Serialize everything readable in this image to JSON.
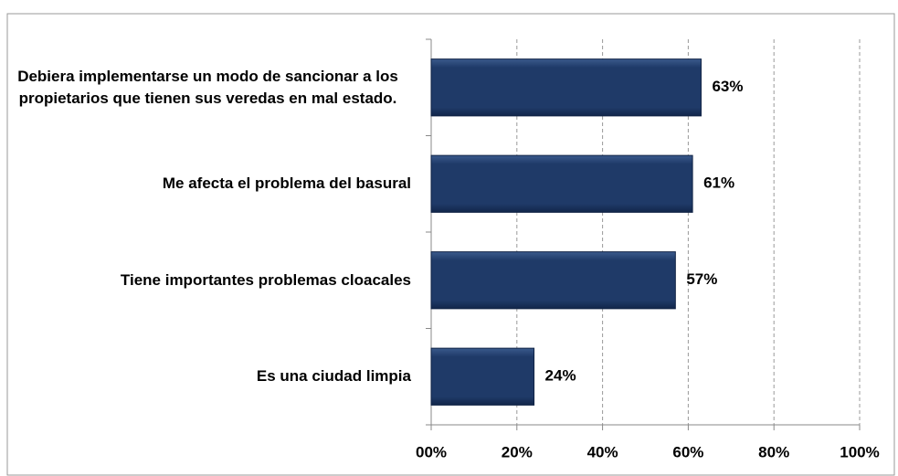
{
  "chart_data": {
    "type": "bar",
    "orientation": "horizontal",
    "categories": [
      "Debiera implementarse un modo de sancionar a los propietarios que tienen sus veredas en mal estado.",
      "Me afecta el problema del basural",
      "Tiene importantes problemas cloacales",
      "Es una ciudad limpia"
    ],
    "values": [
      63,
      61,
      57,
      24
    ],
    "value_labels": [
      "63%",
      "61%",
      "57%",
      "24%"
    ],
    "color": "#1f3a68",
    "xlim": [
      0,
      100
    ],
    "xticks": [
      {
        "value": 0,
        "label": "00%"
      },
      {
        "value": 20,
        "label": "20%"
      },
      {
        "value": 40,
        "label": "40%"
      },
      {
        "value": 60,
        "label": "60%"
      },
      {
        "value": 80,
        "label": "80%"
      },
      {
        "value": 100,
        "label": "100%"
      }
    ],
    "grid": true
  }
}
